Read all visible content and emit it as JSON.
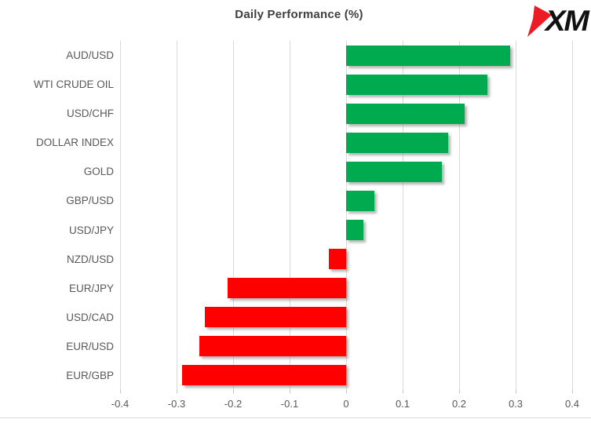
{
  "header": {
    "logo_text": "XM",
    "logo_arrow_color": "#ed1c24"
  },
  "chart_data": {
    "type": "bar",
    "orientation": "horizontal",
    "title": "Daily Performance (%)",
    "categories": [
      "AUD/USD",
      "WTI CRUDE OIL",
      "USD/CHF",
      "DOLLAR INDEX",
      "GOLD",
      "GBP/USD",
      "USD/JPY",
      "NZD/USD",
      "EUR/JPY",
      "USD/CAD",
      "EUR/USD",
      "EUR/GBP"
    ],
    "values": [
      0.29,
      0.25,
      0.21,
      0.18,
      0.17,
      0.05,
      0.03,
      -0.03,
      -0.21,
      -0.25,
      -0.26,
      -0.29
    ],
    "xlim": [
      -0.4,
      0.4
    ],
    "xticks": [
      -0.4,
      -0.3,
      -0.2,
      -0.1,
      0,
      0.1,
      0.2,
      0.3,
      0.4
    ],
    "xtick_labels": [
      "-0.4",
      "-0.3",
      "-0.2",
      "-0.1",
      "0",
      "0.1",
      "0.2",
      "0.3",
      "0.4"
    ],
    "positive_color": "#00ab50",
    "negative_color": "#ff0000",
    "grid": true,
    "legend": "none",
    "xlabel": "",
    "ylabel": ""
  }
}
